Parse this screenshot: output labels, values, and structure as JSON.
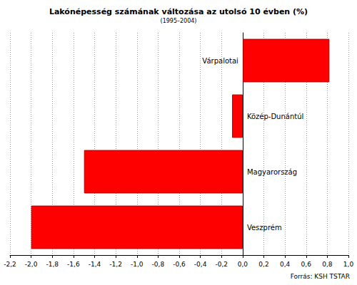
{
  "chart_data": {
    "type": "bar",
    "title": "Lakónépesség számának változása az utolsó 10 évben (%)",
    "subtitle": "(1995–2004)",
    "annotations": [
      "Forrás: KSH TSTAR"
    ],
    "orientation": "horizontal",
    "categories": [
      "Várpalotai",
      "Közép-Dunántúl",
      "Magyarország",
      "Veszprém"
    ],
    "values": [
      0.82,
      -0.1,
      -1.5,
      -2.0
    ],
    "color": "#ff0000",
    "xlim": [
      -2.2,
      1.0
    ],
    "xticks": [
      {
        "value": -2.2,
        "label": "-2,2"
      },
      {
        "value": -2.0,
        "label": "-2,0"
      },
      {
        "value": -1.8,
        "label": "-1,8"
      },
      {
        "value": -1.6,
        "label": "-1,6"
      },
      {
        "value": -1.4,
        "label": "-1,4"
      },
      {
        "value": -1.2,
        "label": "-1,2"
      },
      {
        "value": -1.0,
        "label": "-1,0"
      },
      {
        "value": -0.8,
        "label": "-0,8"
      },
      {
        "value": -0.6,
        "label": "-0,6"
      },
      {
        "value": -0.4,
        "label": "-0,4"
      },
      {
        "value": -0.2,
        "label": "-0,2"
      },
      {
        "value": 0,
        "label": "0,0"
      },
      {
        "value": 0.2,
        "label": "0,2"
      },
      {
        "value": 0.4,
        "label": "0,4"
      },
      {
        "value": 0.6,
        "label": "0,6"
      },
      {
        "value": 0.8,
        "label": "0,8"
      },
      {
        "value": 1.0,
        "label": "1,0"
      }
    ],
    "grid": true
  }
}
